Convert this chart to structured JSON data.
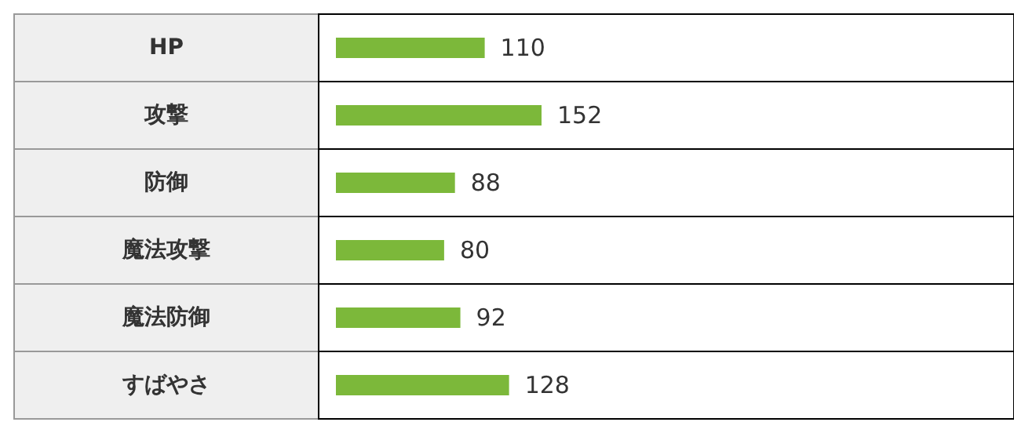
{
  "chart_data": {
    "type": "bar",
    "orientation": "horizontal",
    "categories": [
      "HP",
      "攻撃",
      "防御",
      "魔法攻撃",
      "魔法防御",
      "すばやさ"
    ],
    "values": [
      110,
      152,
      88,
      80,
      92,
      128
    ],
    "color": "#7cb83a",
    "data_labels": true
  }
}
